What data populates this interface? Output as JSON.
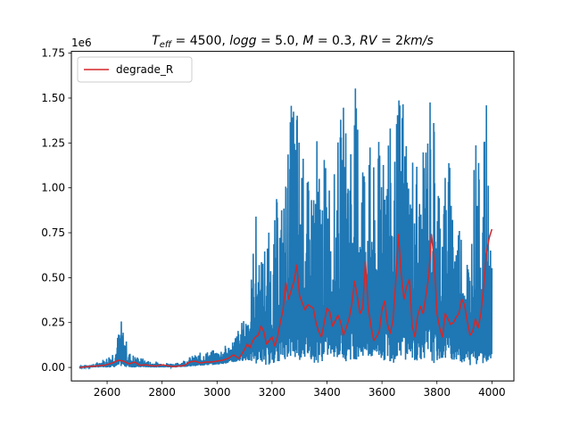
{
  "chart_data": {
    "type": "line",
    "title": "$T_{eff}=4500, logg=5.0, M=0.3, RV=2km/s$",
    "title_parts": {
      "teff_sym": "T",
      "teff_sub": "eff",
      "teff_rest": " = 4500, ",
      "logg_text": "logg",
      "logg_rest": " = 5.0, ",
      "m_text": "M",
      "m_rest": " = 0.3, ",
      "rv_text": "RV",
      "rv_rest": " = 2",
      "unit_text": "km/s"
    },
    "xlabel": "",
    "ylabel": "",
    "xlim": [
      2470,
      4080
    ],
    "ylim": [
      -75000,
      1760000
    ],
    "y_offset_label": "1e6",
    "x_ticks": [
      2600,
      2800,
      3000,
      3200,
      3400,
      3600,
      3800,
      4000
    ],
    "x_tick_labels": [
      "2600",
      "2800",
      "3000",
      "3200",
      "3400",
      "3600",
      "3800",
      "4000"
    ],
    "y_ticks": [
      0,
      250000,
      500000,
      750000,
      1000000,
      1250000,
      1500000,
      1750000
    ],
    "y_tick_labels": [
      "0.00",
      "0.25",
      "0.50",
      "0.75",
      "1.00",
      "1.25",
      "1.50",
      "1.75"
    ],
    "grid": false,
    "legend_position": "top-left",
    "series": [
      {
        "label": "",
        "color": "#1f77b4",
        "style": "noisy-spectrum",
        "x": [
          2500,
          2550,
          2600,
          2630,
          2650,
          2680,
          2700,
          2750,
          2800,
          2850,
          2900,
          2950,
          3000,
          3050,
          3080,
          3100,
          3120,
          3140,
          3160,
          3180,
          3200,
          3220,
          3240,
          3260,
          3280,
          3300,
          3320,
          3340,
          3360,
          3380,
          3400,
          3420,
          3440,
          3460,
          3480,
          3500,
          3520,
          3540,
          3560,
          3580,
          3600,
          3620,
          3640,
          3660,
          3680,
          3700,
          3720,
          3740,
          3760,
          3780,
          3800,
          3820,
          3840,
          3860,
          3880,
          3900,
          3920,
          3940,
          3960,
          3980,
          4000
        ],
        "y_max": [
          10000,
          20000,
          60000,
          120000,
          275000,
          90000,
          70000,
          40000,
          30000,
          25000,
          60000,
          90000,
          100000,
          140000,
          230000,
          280000,
          420000,
          900000,
          600000,
          820000,
          680000,
          1000000,
          950000,
          1300000,
          1680000,
          1400000,
          1100000,
          1020000,
          1350000,
          1100000,
          1250000,
          1000000,
          1300000,
          1500000,
          1380000,
          1600000,
          1480000,
          1280000,
          1250000,
          1000000,
          1650000,
          1580000,
          1100000,
          1550000,
          1650000,
          1150000,
          1350000,
          1000000,
          1400000,
          1650000,
          1220000,
          1050000,
          1250000,
          1000000,
          900000,
          780000,
          650000,
          1350000,
          1000000,
          1480000,
          560000
        ],
        "y_min": [
          0,
          0,
          0,
          0,
          5000,
          0,
          0,
          0,
          0,
          0,
          5000,
          10000,
          15000,
          25000,
          30000,
          40000,
          30000,
          20000,
          30000,
          10000,
          20000,
          30000,
          40000,
          50000,
          30000,
          40000,
          50000,
          40000,
          20000,
          30000,
          50000,
          60000,
          40000,
          30000,
          40000,
          40000,
          50000,
          30000,
          40000,
          50000,
          30000,
          40000,
          20000,
          60000,
          40000,
          50000,
          30000,
          40000,
          50000,
          20000,
          30000,
          40000,
          50000,
          40000,
          30000,
          20000,
          10000,
          20000,
          10000,
          30000,
          50000
        ]
      },
      {
        "label": "degrade_R",
        "color": "#d62728",
        "x": [
          2500,
          2530,
          2560,
          2590,
          2620,
          2640,
          2660,
          2680,
          2700,
          2720,
          2740,
          2760,
          2780,
          2800,
          2820,
          2840,
          2860,
          2880,
          2900,
          2920,
          2940,
          2960,
          2980,
          3000,
          3020,
          3040,
          3060,
          3080,
          3100,
          3110,
          3120,
          3130,
          3140,
          3150,
          3160,
          3170,
          3180,
          3190,
          3200,
          3210,
          3220,
          3230,
          3240,
          3250,
          3260,
          3270,
          3280,
          3290,
          3300,
          3310,
          3320,
          3330,
          3340,
          3350,
          3360,
          3370,
          3380,
          3390,
          3400,
          3410,
          3420,
          3430,
          3440,
          3450,
          3460,
          3470,
          3480,
          3490,
          3500,
          3510,
          3520,
          3530,
          3540,
          3550,
          3560,
          3570,
          3580,
          3590,
          3600,
          3610,
          3620,
          3630,
          3640,
          3650,
          3660,
          3670,
          3680,
          3690,
          3700,
          3710,
          3720,
          3730,
          3740,
          3750,
          3760,
          3770,
          3780,
          3790,
          3800,
          3810,
          3820,
          3830,
          3840,
          3850,
          3860,
          3870,
          3880,
          3890,
          3900,
          3910,
          3920,
          3930,
          3940,
          3950,
          3960,
          3970,
          3980,
          3990,
          4000
        ],
        "y": [
          0,
          5000,
          8000,
          12000,
          25000,
          40000,
          35000,
          20000,
          30000,
          12000,
          15000,
          10000,
          8000,
          15000,
          10000,
          5000,
          8000,
          10000,
          30000,
          35000,
          25000,
          30000,
          30000,
          35000,
          40000,
          50000,
          70000,
          50000,
          100000,
          130000,
          110000,
          150000,
          170000,
          180000,
          230000,
          200000,
          130000,
          150000,
          170000,
          120000,
          170000,
          250000,
          320000,
          470000,
          380000,
          430000,
          480000,
          570000,
          400000,
          360000,
          320000,
          350000,
          340000,
          330000,
          250000,
          200000,
          170000,
          250000,
          330000,
          310000,
          230000,
          260000,
          290000,
          250000,
          180000,
          220000,
          270000,
          350000,
          480000,
          400000,
          300000,
          330000,
          590000,
          330000,
          230000,
          150000,
          170000,
          200000,
          320000,
          370000,
          240000,
          190000,
          260000,
          480000,
          740000,
          520000,
          380000,
          450000,
          490000,
          230000,
          170000,
          290000,
          340000,
          300000,
          400000,
          510000,
          740000,
          600000,
          300000,
          220000,
          170000,
          300000,
          270000,
          240000,
          250000,
          280000,
          300000,
          380000,
          350000,
          260000,
          180000,
          200000,
          270000,
          220000,
          300000,
          450000,
          640000,
          720000,
          770000
        ]
      }
    ]
  }
}
